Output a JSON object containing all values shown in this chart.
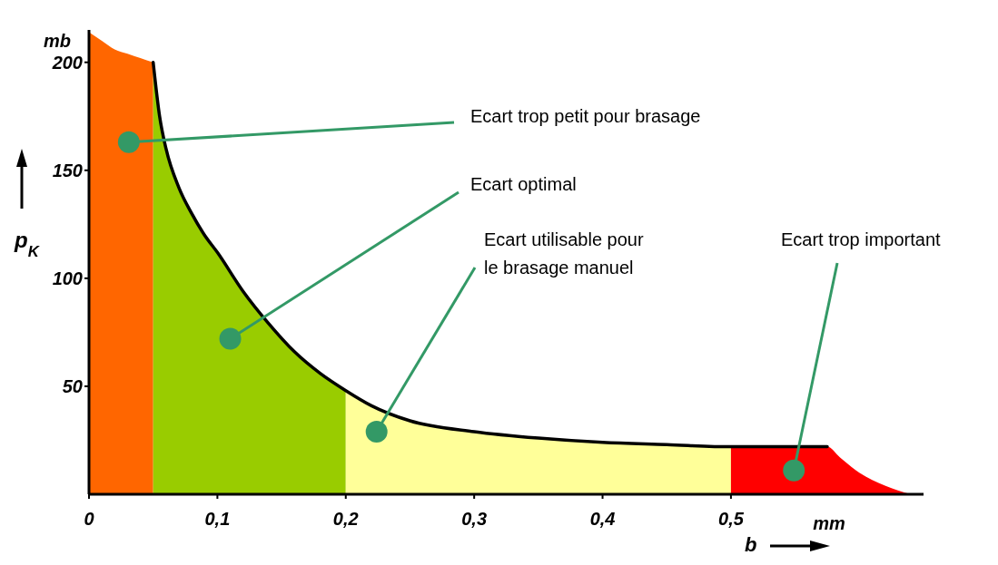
{
  "chart_data": {
    "type": "area",
    "xlabel": "b",
    "ylabel": "p$_{K}$",
    "xlim": [
      0,
      0.65
    ],
    "ylim": [
      0,
      215
    ],
    "xticks": [
      0,
      {
        "value": 0.1,
        "label": "0,1"
      },
      {
        "value": 0.2,
        "label": "0,2"
      },
      {
        "value": 0.3,
        "label": "0,3"
      },
      {
        "value": 0.4,
        "label": "0,4"
      },
      {
        "value": 0.5,
        "label": "0,5"
      }
    ],
    "yticks": [
      50,
      100,
      150,
      200
    ],
    "series": [
      {
        "type": "area",
        "color": "#ff6600",
        "x": [
          0,
          0.01,
          0.02,
          0.03,
          0.04,
          0.05
        ],
        "values": [
          214,
          210,
          206,
          204,
          202,
          200
        ]
      },
      {
        "type": "area",
        "color": "#99cc00",
        "x": [
          0.05,
          0.055,
          0.06,
          0.07,
          0.08,
          0.09,
          0.1,
          0.12,
          0.14,
          0.16,
          0.18,
          0.2
        ],
        "values": [
          200,
          175,
          160,
          142,
          130,
          120,
          112,
          94,
          79,
          66,
          56,
          48
        ]
      },
      {
        "type": "area",
        "color": "#ffff99",
        "x": [
          0.2,
          0.22,
          0.25,
          0.3,
          0.35,
          0.4,
          0.45,
          0.5
        ],
        "values": [
          48,
          41,
          34,
          29,
          26,
          24,
          23,
          22
        ]
      },
      {
        "type": "area",
        "color": "#ff0000",
        "x": [
          0.5,
          0.575,
          0.585,
          0.6,
          0.62,
          0.64
        ],
        "values": [
          22,
          22,
          17,
          10,
          4,
          0
        ]
      },
      {
        "type": "line",
        "color": "#000000",
        "x": [
          0.05,
          0.055,
          0.06,
          0.07,
          0.08,
          0.09,
          0.1,
          0.12,
          0.14,
          0.16,
          0.18,
          0.2,
          0.22,
          0.25,
          0.3,
          0.35,
          0.4,
          0.45,
          0.5,
          0.575
        ],
        "values": [
          200,
          175,
          160,
          142,
          130,
          120,
          112,
          94,
          79,
          66,
          56,
          48,
          41,
          34,
          29,
          26,
          24,
          23,
          22,
          22
        ]
      }
    ],
    "annotations": [
      {
        "text": "Ecart trop petit pour brasage",
        "x": 0.031,
        "y": 163
      },
      {
        "text": "Ecart optimal",
        "x": 0.11,
        "y": 72
      },
      {
        "text": "Ecart utilisable pour\nle brasage manuel",
        "x": 0.224,
        "y": 29
      },
      {
        "text": "Ecart trop important",
        "x": 0.549,
        "y": 11
      },
      "mb",
      "mm"
    ]
  }
}
